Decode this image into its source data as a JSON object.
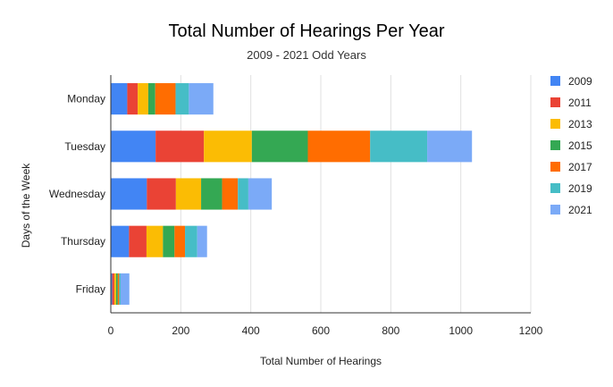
{
  "chart_data": {
    "type": "bar",
    "orientation": "horizontal",
    "stacked": true,
    "title": "Total Number of Hearings Per Year",
    "subtitle": "2009 - 2021 Odd Years",
    "xlabel": "Total Number of Hearings",
    "ylabel": "Days of the Week",
    "categories": [
      "Monday",
      "Tuesday",
      "Wednesday",
      "Thursday",
      "Friday"
    ],
    "series": [
      {
        "name": "2009",
        "color": "#4285f4",
        "values": [
          47,
          128,
          103,
          52,
          4
        ]
      },
      {
        "name": "2011",
        "color": "#ea4335",
        "values": [
          30,
          138,
          83,
          50,
          6
        ]
      },
      {
        "name": "2013",
        "color": "#fbbc04",
        "values": [
          30,
          137,
          72,
          47,
          5
        ]
      },
      {
        "name": "2015",
        "color": "#34a853",
        "values": [
          20,
          160,
          60,
          33,
          5
        ]
      },
      {
        "name": "2017",
        "color": "#ff6d01",
        "values": [
          58,
          178,
          45,
          30,
          4
        ]
      },
      {
        "name": "2019",
        "color": "#46bdc6",
        "values": [
          38,
          163,
          30,
          35,
          4
        ]
      },
      {
        "name": "2021",
        "color": "#7baaf7",
        "values": [
          70,
          128,
          67,
          28,
          25
        ]
      }
    ],
    "xlim": [
      0,
      1200
    ],
    "xticks": [
      0,
      200,
      400,
      600,
      800,
      1000,
      1200
    ],
    "grid": true,
    "legend": "right"
  }
}
